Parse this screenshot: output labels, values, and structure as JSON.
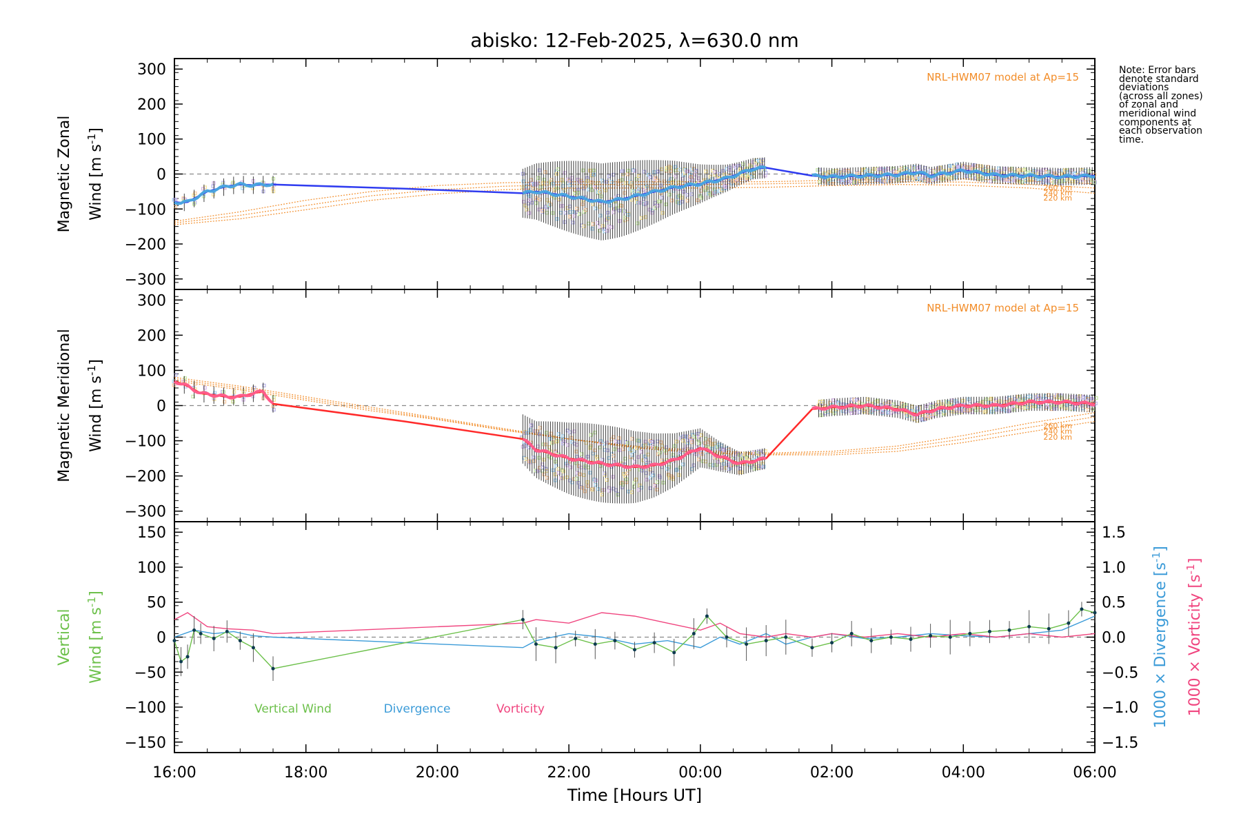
{
  "colors": {
    "zonal_line": "#2f3cf0",
    "zonal_fit": "#4aa3df",
    "meridional_line": "#ff2a2a",
    "meridional_fit": "#ff5c8a",
    "model": "#f28c28",
    "vertical": "#6cc04a",
    "divergence": "#3b9bd8",
    "vorticity": "#f0457f",
    "errorbar": "#000000",
    "zero_line": "#888888"
  },
  "note": [
    "Note: Error bars",
    "denote standard",
    "deviations",
    "(across all zones)",
    "of zonal and",
    "meridional wind",
    "components at",
    "each observation",
    "time."
  ],
  "chart_data": [
    {
      "type": "line",
      "panel": "zonal",
      "title": "abisko: 12-Feb-2025, λ=630.0 nm",
      "ylabel_line1": "Magnetic Zonal",
      "ylabel_line2": "Wind [m s",
      "ylabel_sup": "-1",
      "ylabel_close": "]",
      "ylim": [
        -330,
        330
      ],
      "yticks": [
        -300,
        -200,
        -100,
        0,
        100,
        200,
        300
      ],
      "yticklabels": [
        "−300",
        "−200",
        "−100",
        "0",
        "100",
        "200",
        "300"
      ],
      "xlim": [
        16,
        30
      ],
      "model_label": "NRL-HWM07 model at Ap=15",
      "model_heights": [
        "260 km",
        "240 km",
        "220 km"
      ],
      "series": [
        {
          "name": "Magnetic Zonal Wind",
          "x": [
            16.0,
            16.1,
            16.2,
            16.3,
            16.4,
            16.5,
            16.6,
            16.8,
            17.0,
            17.2,
            17.4,
            17.5,
            19.5,
            21.3,
            21.5,
            21.8,
            22.2,
            22.5,
            22.8,
            23.2,
            23.6,
            24.0,
            24.4,
            24.8,
            25.0,
            25.7,
            26.0,
            26.5,
            27.0,
            27.3,
            27.5,
            28.0,
            28.5,
            29.0,
            29.5,
            30.0
          ],
          "y": [
            -80,
            -82,
            -80,
            -70,
            -60,
            -50,
            -45,
            -35,
            -30,
            -32,
            -30,
            -30,
            -42,
            -55,
            -50,
            -58,
            -70,
            -80,
            -72,
            -55,
            -38,
            -28,
            -12,
            15,
            18,
            -5,
            -8,
            -5,
            -2,
            5,
            -5,
            10,
            -3,
            -5,
            -8,
            -5
          ]
        }
      ],
      "model_x": [
        16.0,
        17.0,
        18.0,
        19.0,
        20.0,
        21.0,
        22.0,
        23.0,
        24.0,
        25.0,
        26.0,
        27.0,
        28.0,
        29.0,
        30.0
      ],
      "model_series": [
        {
          "height": "260 km",
          "y": [
            -135,
            -108,
            -75,
            -50,
            -33,
            -25,
            -22,
            -22,
            -22,
            -22,
            -18,
            -15,
            -14,
            -20,
            -28
          ]
        },
        {
          "height": "240 km",
          "y": [
            -140,
            -118,
            -90,
            -62,
            -45,
            -35,
            -30,
            -30,
            -30,
            -28,
            -25,
            -23,
            -23,
            -30,
            -40
          ]
        },
        {
          "height": "220 km",
          "y": [
            -145,
            -128,
            -102,
            -75,
            -57,
            -45,
            -40,
            -40,
            -40,
            -38,
            -33,
            -30,
            -32,
            -40,
            -55
          ]
        }
      ]
    },
    {
      "type": "line",
      "panel": "meridional",
      "ylabel_line1": "Magnetic Meridional",
      "ylabel_line2": "Wind [m s",
      "ylabel_sup": "-1",
      "ylabel_close": "]",
      "ylim": [
        -330,
        330
      ],
      "yticks": [
        -300,
        -200,
        -100,
        0,
        100,
        200,
        300
      ],
      "yticklabels": [
        "−300",
        "−200",
        "−100",
        "0",
        "100",
        "200",
        "300"
      ],
      "xlim": [
        16,
        30
      ],
      "model_label": "NRL-HWM07 model at Ap=15",
      "model_heights": [
        "260 km",
        "240 km",
        "220 km"
      ],
      "series": [
        {
          "name": "Magnetic Meridional Wind",
          "x": [
            16.0,
            16.2,
            16.4,
            16.6,
            16.8,
            17.0,
            17.2,
            17.35,
            17.5,
            19.5,
            21.3,
            21.5,
            22.0,
            22.5,
            23.0,
            23.3,
            23.6,
            24.0,
            24.3,
            24.6,
            25.0,
            25.7,
            26.0,
            26.5,
            27.0,
            27.3,
            27.6,
            28.0,
            28.5,
            29.0,
            29.5,
            30.0
          ],
          "y": [
            70,
            55,
            35,
            30,
            25,
            25,
            35,
            40,
            5,
            -45,
            -95,
            -125,
            -150,
            -165,
            -175,
            -170,
            -155,
            -120,
            -145,
            -165,
            -150,
            -10,
            -5,
            0,
            -10,
            -25,
            -10,
            0,
            0,
            10,
            10,
            5
          ]
        }
      ],
      "model_x": [
        16.0,
        17.0,
        18.0,
        19.0,
        20.0,
        21.0,
        22.0,
        23.0,
        24.0,
        25.0,
        26.0,
        27.0,
        28.0,
        29.0,
        30.0
      ],
      "model_series": [
        {
          "height": "260 km",
          "y": [
            70,
            45,
            15,
            -15,
            -40,
            -70,
            -95,
            -115,
            -128,
            -135,
            -130,
            -115,
            -85,
            -50,
            -20
          ]
        },
        {
          "height": "240 km",
          "y": [
            75,
            50,
            20,
            -10,
            -38,
            -68,
            -95,
            -118,
            -132,
            -138,
            -135,
            -122,
            -95,
            -62,
            -32
          ]
        },
        {
          "height": "220 km",
          "y": [
            80,
            55,
            25,
            -5,
            -35,
            -65,
            -95,
            -120,
            -135,
            -140,
            -140,
            -130,
            -105,
            -75,
            -45
          ]
        }
      ]
    },
    {
      "type": "line",
      "panel": "vertical",
      "ylabel_line1": "Vertical",
      "ylabel_line2": "Wind [m s",
      "ylabel_sup": "-1",
      "ylabel_close": "]",
      "ylim": [
        -165,
        165
      ],
      "yticks": [
        -150,
        -100,
        -50,
        0,
        50,
        100,
        150
      ],
      "yticklabels": [
        "−150",
        "−100",
        "−50",
        "0",
        "50",
        "100",
        "150"
      ],
      "y2lim": [
        -1.65,
        1.65
      ],
      "y2ticks": [
        -1.5,
        -1.0,
        -0.5,
        0.0,
        0.5,
        1.0,
        1.5
      ],
      "y2ticklabels": [
        "−1.5",
        "−1.0",
        "−0.5",
        "0.0",
        "0.5",
        "1.0",
        "1.5"
      ],
      "y2label_div": "1000 × Divergence [s",
      "y2label_vort": "1000 × Vorticity [s",
      "y2label_sup": "-1",
      "y2label_close": "]",
      "xlim": [
        16,
        30
      ],
      "xticks": [
        16,
        18,
        20,
        22,
        24,
        26,
        28,
        30
      ],
      "xticklabels": [
        "16:00",
        "18:00",
        "20:00",
        "22:00",
        "00:00",
        "02:00",
        "04:00",
        "06:00"
      ],
      "xlabel": "Time [Hours UT]",
      "legend": [
        "Vertical Wind",
        "Divergence",
        "Vorticity"
      ],
      "series": [
        {
          "name": "Vertical Wind",
          "x": [
            16.0,
            16.1,
            16.2,
            16.3,
            16.4,
            16.6,
            16.8,
            17.0,
            17.2,
            17.5,
            21.3,
            21.5,
            21.8,
            22.1,
            22.4,
            22.7,
            23.0,
            23.3,
            23.6,
            23.9,
            24.1,
            24.4,
            24.7,
            25.0,
            25.3,
            25.7,
            26.0,
            26.3,
            26.6,
            26.9,
            27.2,
            27.5,
            27.8,
            28.1,
            28.4,
            28.7,
            29.0,
            29.3,
            29.6,
            29.8,
            30.0
          ],
          "y": [
            -5,
            -35,
            -28,
            10,
            5,
            -2,
            8,
            -5,
            -15,
            -45,
            25,
            -10,
            -15,
            -2,
            -10,
            -5,
            -18,
            -8,
            -22,
            5,
            30,
            0,
            -10,
            -5,
            0,
            -15,
            -8,
            5,
            -5,
            0,
            -3,
            2,
            0,
            5,
            8,
            10,
            15,
            12,
            20,
            40,
            35
          ]
        },
        {
          "name": "Divergence",
          "x": [
            16.0,
            16.3,
            16.6,
            16.9,
            17.2,
            17.5,
            21.3,
            21.5,
            22.0,
            22.5,
            23.0,
            23.5,
            24.0,
            24.3,
            24.6,
            25.0,
            25.3,
            25.7,
            26.0,
            26.5,
            27.0,
            27.5,
            28.0,
            28.5,
            29.0,
            29.5,
            30.0
          ],
          "y": [
            0.0,
            0.1,
            0.05,
            0.08,
            0.02,
            0.0,
            -0.15,
            -0.05,
            0.05,
            0.0,
            -0.1,
            -0.05,
            -0.15,
            0.0,
            -0.1,
            0.05,
            -0.1,
            0.0,
            0.05,
            -0.02,
            0.0,
            0.05,
            0.02,
            0.0,
            0.05,
            0.1,
            0.3
          ]
        },
        {
          "name": "Vorticity",
          "x": [
            16.0,
            16.2,
            16.5,
            16.8,
            17.2,
            17.5,
            21.3,
            21.5,
            22.0,
            22.5,
            23.0,
            23.5,
            24.0,
            24.3,
            24.6,
            25.0,
            25.3,
            25.7,
            26.0,
            26.5,
            27.0,
            27.5,
            28.0,
            28.5,
            29.0,
            29.5,
            30.0
          ],
          "y": [
            0.25,
            0.35,
            0.15,
            0.12,
            0.1,
            0.05,
            0.2,
            0.25,
            0.2,
            0.35,
            0.3,
            0.2,
            0.1,
            0.2,
            0.05,
            0.0,
            0.05,
            0.0,
            0.05,
            0.0,
            0.05,
            0.0,
            0.05,
            0.0,
            0.05,
            0.0,
            0.05
          ]
        }
      ]
    }
  ]
}
